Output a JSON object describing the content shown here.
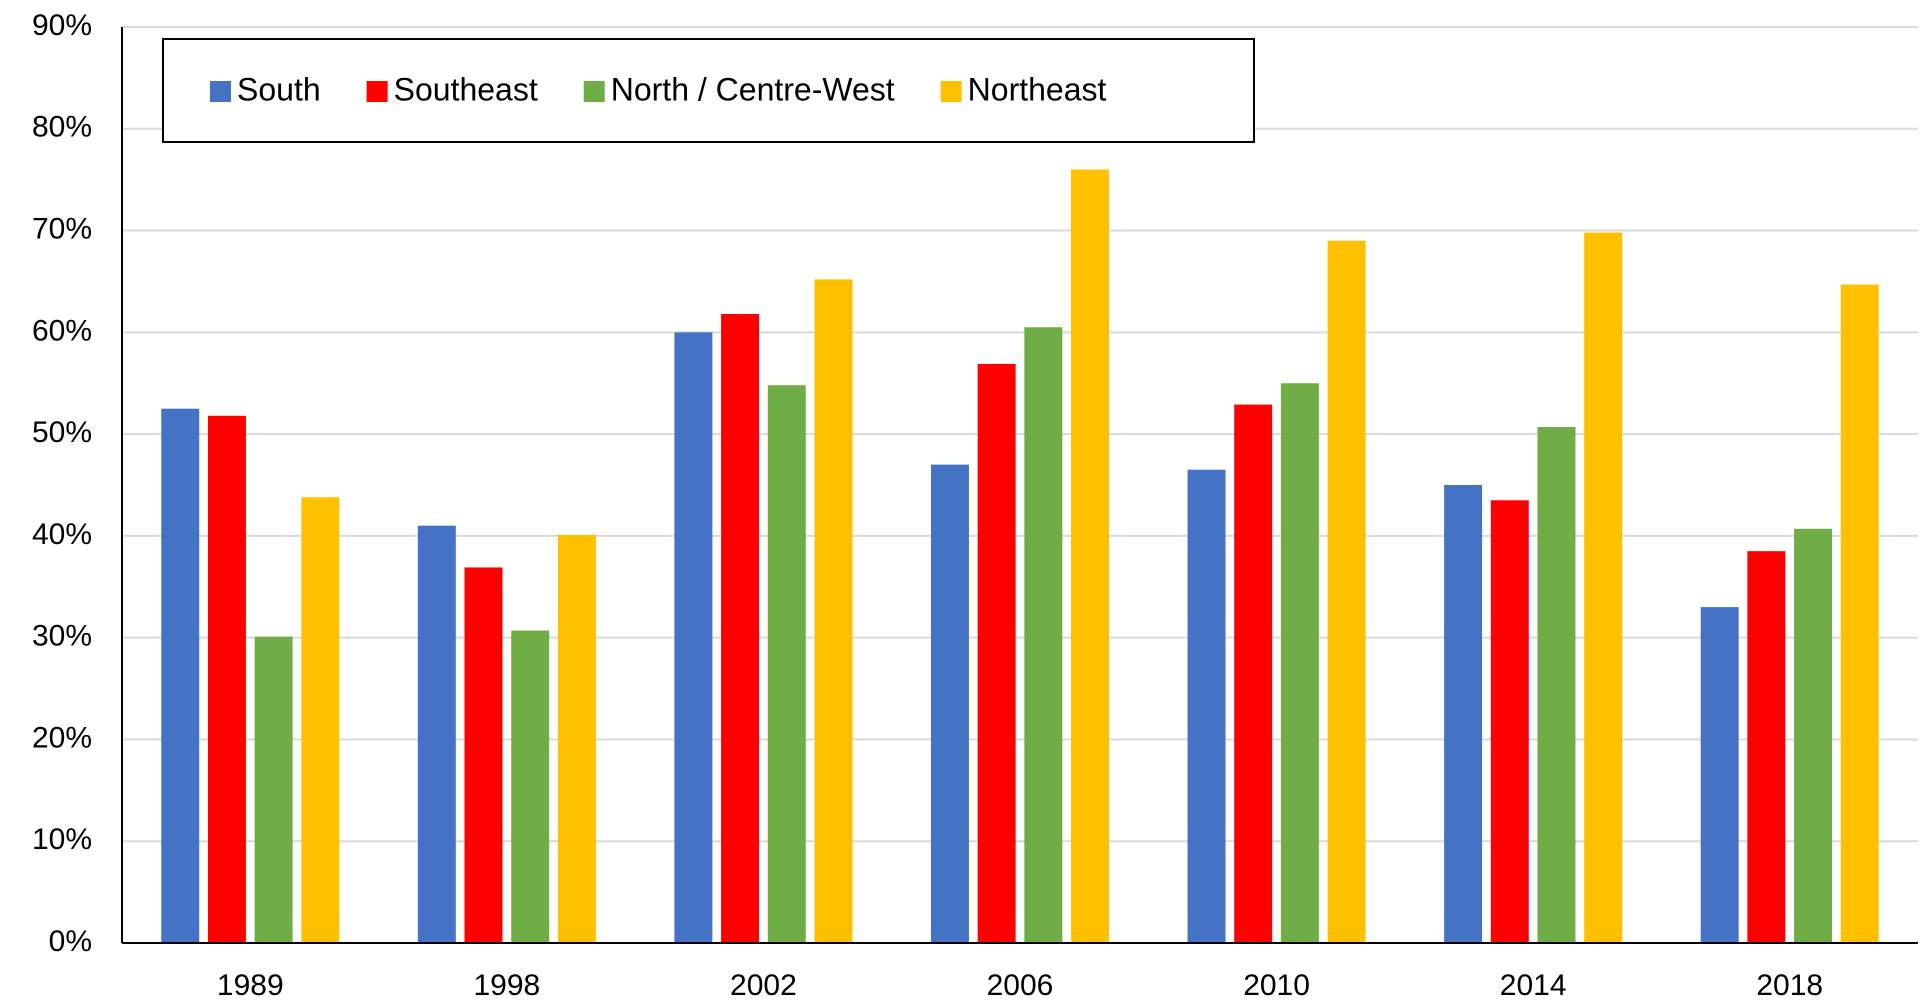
{
  "chart_data": {
    "type": "bar",
    "categories": [
      "1989",
      "1998",
      "2002",
      "2006",
      "2010",
      "2014",
      "2018"
    ],
    "series": [
      {
        "name": "South",
        "color": "#4472c4",
        "values": [
          52.5,
          41,
          60,
          47,
          46.5,
          45,
          33
        ]
      },
      {
        "name": "Southeast",
        "color": "#ff0000",
        "values": [
          51.8,
          36.9,
          61.8,
          56.9,
          52.9,
          43.5,
          38.5
        ]
      },
      {
        "name": "North / Centre-West",
        "color": "#70ad47",
        "values": [
          30.1,
          30.7,
          54.8,
          60.5,
          55,
          50.7,
          40.7
        ]
      },
      {
        "name": "Northeast",
        "color": "#ffc000",
        "values": [
          43.8,
          40.1,
          65.2,
          76,
          69,
          69.8,
          64.7
        ]
      }
    ],
    "ylim": [
      0,
      90
    ],
    "yticks": [
      {
        "value": 0,
        "label": "0%"
      },
      {
        "value": 10,
        "label": "10%"
      },
      {
        "value": 20,
        "label": "20%"
      },
      {
        "value": 30,
        "label": "30%"
      },
      {
        "value": 40,
        "label": "40%"
      },
      {
        "value": 50,
        "label": "50%"
      },
      {
        "value": 60,
        "label": "60%"
      },
      {
        "value": 70,
        "label": "70%"
      },
      {
        "value": 80,
        "label": "80%"
      },
      {
        "value": 90,
        "label": "90%"
      }
    ],
    "grid": true
  }
}
